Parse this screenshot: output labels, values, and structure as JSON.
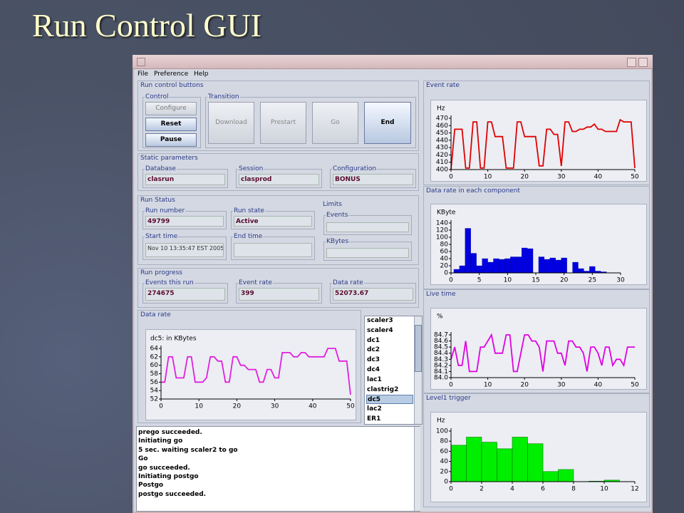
{
  "slide_title": "Run Control GUI",
  "menu": [
    "File",
    "Preference",
    "Help"
  ],
  "run_control": {
    "title": "Run control buttons",
    "control_label": "Control",
    "control_buttons": [
      "Configure",
      "Reset",
      "Pause"
    ],
    "transition_label": "Transition",
    "transition_buttons": [
      "Download",
      "Prestart",
      "Go",
      "End"
    ]
  },
  "static_parameters": {
    "title": "Static parameters",
    "fields": [
      {
        "label": "Database",
        "value": "clasrun"
      },
      {
        "label": "Session",
        "value": "clasprod"
      },
      {
        "label": "Configuration",
        "value": "BONUS"
      }
    ]
  },
  "run_status": {
    "title": "Run Status",
    "fields": [
      {
        "label": "Run number",
        "value": "49799"
      },
      {
        "label": "Run state",
        "value": "Active"
      },
      {
        "label": "Start time",
        "value": "Nov 10 13:35:47 EST 2005"
      },
      {
        "label": "End time"
      }
    ],
    "limits": {
      "title": "Limits",
      "fields": [
        "Events",
        "KBytes"
      ]
    }
  },
  "run_progress": {
    "title": "Run progress",
    "fields": [
      {
        "label": "Events this run",
        "value": "274675"
      },
      {
        "label": "Event rate",
        "value": "399"
      },
      {
        "label": "Data rate",
        "value": "52073.67"
      }
    ]
  },
  "component_list": {
    "items": [
      "scaler3",
      "scaler4",
      "dc1",
      "dc2",
      "dc3",
      "dc4",
      "lac1",
      "clastrig2",
      "dc5",
      "lac2",
      "ER1"
    ],
    "selected": 8
  },
  "log": [
    "prego succeeded.",
    "Initiating go",
    "5 sec. waiting scaler2 to go",
    "Go",
    "go succeeded.",
    "Initiating postgo",
    "Postgo",
    "postgo succeeded."
  ],
  "chart_data": [
    {
      "type": "line",
      "title": "Event rate",
      "y_label": "Hz",
      "color": "#e00000",
      "x": [
        0,
        1,
        2,
        3,
        4,
        5,
        6,
        7,
        8,
        9,
        10,
        11,
        12,
        13,
        14,
        15,
        16,
        17,
        18,
        19,
        20,
        21,
        22,
        23,
        24,
        25,
        26,
        27,
        28,
        29,
        30,
        31,
        32,
        33,
        34,
        35,
        36,
        37,
        38,
        39,
        40,
        41,
        42,
        43,
        44,
        45,
        46,
        47,
        48,
        49,
        50
      ],
      "values": [
        400,
        455,
        455,
        455,
        402,
        402,
        465,
        465,
        402,
        402,
        465,
        465,
        445,
        445,
        445,
        402,
        402,
        402,
        465,
        465,
        445,
        445,
        445,
        445,
        405,
        405,
        455,
        455,
        448,
        448,
        405,
        465,
        465,
        452,
        452,
        455,
        455,
        458,
        458,
        462,
        455,
        455,
        452,
        452,
        452,
        452,
        468,
        465,
        465,
        465,
        402
      ],
      "xlim": [
        0,
        50
      ],
      "xticks": [
        0,
        10,
        20,
        30,
        40,
        50
      ],
      "ylim": [
        400,
        470
      ],
      "yticks": [
        400,
        410,
        420,
        430,
        440,
        450,
        460,
        470
      ]
    },
    {
      "type": "bar",
      "title": "Data rate in each component",
      "y_label": "KByte",
      "color": "#0000e0",
      "x": [
        1,
        2,
        3,
        4,
        5,
        6,
        7,
        8,
        9,
        10,
        11,
        12,
        13,
        14,
        15,
        16,
        17,
        18,
        19,
        20,
        21,
        22,
        23,
        24,
        25,
        26,
        27
      ],
      "values": [
        10,
        20,
        125,
        55,
        20,
        40,
        30,
        40,
        38,
        40,
        45,
        45,
        70,
        68,
        0,
        45,
        38,
        42,
        36,
        42,
        0,
        30,
        12,
        5,
        18,
        5,
        3
      ],
      "xlim": [
        0,
        30
      ],
      "xticks": [
        0,
        5,
        10,
        15,
        20,
        25,
        30
      ],
      "ylim": [
        0,
        140
      ],
      "yticks": [
        0,
        20,
        40,
        60,
        80,
        100,
        120,
        140
      ]
    },
    {
      "type": "line",
      "title": "Live time",
      "y_label": "%",
      "color": "#e000e0",
      "x": [
        0,
        1,
        2,
        3,
        4,
        5,
        6,
        7,
        8,
        9,
        10,
        11,
        12,
        13,
        14,
        15,
        16,
        17,
        18,
        19,
        20,
        21,
        22,
        23,
        24,
        25,
        26,
        27,
        28,
        29,
        30,
        31,
        32,
        33,
        34,
        35,
        36,
        37,
        38,
        39,
        40,
        41,
        42,
        43,
        44,
        45,
        46,
        47,
        48,
        49,
        50
      ],
      "values": [
        84.3,
        84.5,
        84.2,
        84.2,
        84.6,
        84.1,
        84.1,
        84.1,
        84.5,
        84.5,
        84.6,
        84.7,
        84.4,
        84.4,
        84.4,
        84.7,
        84.7,
        84.1,
        84.1,
        84.4,
        84.7,
        84.7,
        84.6,
        84.6,
        84.5,
        84.1,
        84.6,
        84.6,
        84.6,
        84.4,
        84.4,
        84.2,
        84.6,
        84.6,
        84.5,
        84.5,
        84.4,
        84.1,
        84.5,
        84.5,
        84.4,
        84.2,
        84.5,
        84.5,
        84.2,
        84.3,
        84.3,
        84.2,
        84.5,
        84.5,
        84.5
      ],
      "xlim": [
        0,
        50
      ],
      "xticks": [
        0,
        10,
        20,
        30,
        40,
        50
      ],
      "ylim": [
        84.0,
        84.7
      ],
      "yticks": [
        {
          "value": 84,
          "label": "84.0"
        },
        84.1,
        84.2,
        84.3,
        84.4,
        84.5,
        84.6,
        84.7
      ]
    },
    {
      "type": "histogram",
      "title": "Level1 trigger",
      "y_label": "Hz",
      "color": "#00ee00",
      "bins": [
        0,
        1,
        2,
        3,
        4,
        5,
        6,
        7,
        8,
        9,
        10,
        11
      ],
      "values": [
        72,
        88,
        78,
        65,
        88,
        75,
        20,
        24,
        0,
        1,
        3
      ],
      "xlim": [
        0,
        12
      ],
      "xticks": [
        0,
        2,
        4,
        6,
        8,
        10,
        12
      ],
      "ylim": [
        0,
        100
      ],
      "yticks": [
        0,
        20,
        40,
        60,
        80,
        100
      ]
    },
    {
      "type": "line",
      "title": "Data rate",
      "y_label": "dc5: in KBytes",
      "color": "#e020e0",
      "x": [
        0,
        1,
        2,
        3,
        4,
        5,
        6,
        7,
        8,
        9,
        10,
        11,
        12,
        13,
        14,
        15,
        16,
        17,
        18,
        19,
        20,
        21,
        22,
        23,
        24,
        25,
        26,
        27,
        28,
        29,
        30,
        31,
        32,
        33,
        34,
        35,
        36,
        37,
        38,
        39,
        40,
        41,
        42,
        43,
        44,
        45,
        46,
        47,
        48,
        49,
        50
      ],
      "values": [
        56,
        56,
        62,
        62,
        57,
        57,
        57,
        62,
        62,
        56,
        56,
        56,
        57,
        62,
        62,
        61,
        61,
        56,
        56,
        62,
        62,
        60,
        60,
        59,
        59,
        59,
        56,
        56,
        59,
        59,
        57,
        57,
        63,
        63,
        63,
        62,
        62,
        63,
        63,
        62,
        62,
        62,
        62,
        62,
        64,
        64,
        64,
        61,
        61,
        61,
        53
      ],
      "xlim": [
        0,
        50
      ],
      "xticks": [
        0,
        10,
        20,
        30,
        40,
        50
      ],
      "ylim": [
        52,
        64
      ],
      "yticks": [
        52,
        54,
        56,
        58,
        60,
        62,
        64
      ]
    }
  ]
}
